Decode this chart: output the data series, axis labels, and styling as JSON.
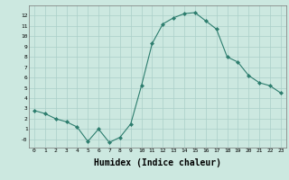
{
  "x": [
    0,
    1,
    2,
    3,
    4,
    5,
    6,
    7,
    8,
    9,
    10,
    11,
    12,
    13,
    14,
    15,
    16,
    17,
    18,
    19,
    20,
    21,
    22,
    23
  ],
  "y": [
    2.8,
    2.5,
    2.0,
    1.7,
    1.2,
    -0.2,
    1.0,
    -0.3,
    0.2,
    1.5,
    5.2,
    9.3,
    11.2,
    11.8,
    12.2,
    12.3,
    11.5,
    10.7,
    8.0,
    7.5,
    6.2,
    5.5,
    5.2,
    4.5
  ],
  "line_color": "#2d7d6e",
  "marker": "D",
  "marker_size": 2,
  "bg_color": "#cce8e0",
  "grid_color": "#aacfc8",
  "xlabel": "Humidex (Indice chaleur)",
  "xlabel_fontsize": 7,
  "ytick_labels": [
    "-0",
    "1",
    "2",
    "3",
    "4",
    "5",
    "6",
    "7",
    "8",
    "9",
    "10",
    "11",
    "12"
  ],
  "ytick_vals": [
    0,
    1,
    2,
    3,
    4,
    5,
    6,
    7,
    8,
    9,
    10,
    11,
    12
  ],
  "xlim": [
    -0.5,
    23.5
  ],
  "ylim": [
    -0.8,
    13.0
  ]
}
